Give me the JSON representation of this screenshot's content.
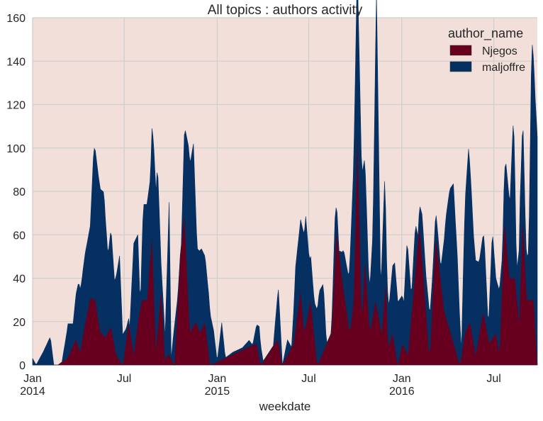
{
  "chart_data": {
    "type": "area",
    "stacked": true,
    "title": "All topics : authors activity",
    "xlabel": "weekdate",
    "ylabel": "",
    "ylim": [
      0,
      160
    ],
    "xlim": [
      "2014-01-01",
      "2016-09-25"
    ],
    "yticks": [
      0,
      20,
      40,
      60,
      80,
      100,
      120,
      140,
      160
    ],
    "xticks": [
      {
        "date": "2014-01-01",
        "label": "Jan",
        "sublabel": "2014"
      },
      {
        "date": "2014-07-01",
        "label": "Jul",
        "sublabel": ""
      },
      {
        "date": "2015-01-01",
        "label": "Jan",
        "sublabel": "2015"
      },
      {
        "date": "2015-07-01",
        "label": "Jul",
        "sublabel": ""
      },
      {
        "date": "2016-01-01",
        "label": "Jan",
        "sublabel": "2016"
      },
      {
        "date": "2016-07-01",
        "label": "Jul",
        "sublabel": ""
      }
    ],
    "grid": true,
    "legend": {
      "title": "author_name",
      "position": "top-right"
    },
    "colors": {
      "Njegos": "#67001f",
      "maljoffre": "#053061",
      "background": "#f3dfd9",
      "grid": "#cfcfcf"
    },
    "series": [
      {
        "name": "Njegos",
        "points": [
          [
            "2014-01-01",
            0
          ],
          [
            "2014-02-20",
            0
          ],
          [
            "2014-03-10",
            3
          ],
          [
            "2014-03-28",
            12
          ],
          [
            "2014-04-05",
            6
          ],
          [
            "2014-04-12",
            16
          ],
          [
            "2014-04-25",
            31
          ],
          [
            "2014-05-05",
            30
          ],
          [
            "2014-05-15",
            15
          ],
          [
            "2014-05-25",
            13
          ],
          [
            "2014-06-05",
            18
          ],
          [
            "2014-06-15",
            5
          ],
          [
            "2014-06-28",
            0
          ],
          [
            "2014-07-10",
            20
          ],
          [
            "2014-07-20",
            5
          ],
          [
            "2014-07-28",
            20
          ],
          [
            "2014-08-05",
            30
          ],
          [
            "2014-08-15",
            30
          ],
          [
            "2014-08-25",
            60
          ],
          [
            "2014-09-02",
            8
          ],
          [
            "2014-09-12",
            35
          ],
          [
            "2014-09-20",
            3
          ],
          [
            "2014-09-28",
            5
          ],
          [
            "2014-10-08",
            0
          ],
          [
            "2014-10-20",
            50
          ],
          [
            "2014-10-28",
            70
          ],
          [
            "2014-11-08",
            15
          ],
          [
            "2014-11-20",
            20
          ],
          [
            "2014-11-28",
            15
          ],
          [
            "2014-12-08",
            20
          ],
          [
            "2014-12-18",
            0
          ],
          [
            "2015-03-20",
            10
          ],
          [
            "2015-03-28",
            0
          ],
          [
            "2015-05-01",
            12
          ],
          [
            "2015-05-10",
            0
          ],
          [
            "2015-06-01",
            10
          ],
          [
            "2015-06-15",
            35
          ],
          [
            "2015-06-22",
            15
          ],
          [
            "2015-07-05",
            30
          ],
          [
            "2015-07-18",
            0
          ],
          [
            "2015-08-15",
            15
          ],
          [
            "2015-08-25",
            63
          ],
          [
            "2015-09-05",
            40
          ],
          [
            "2015-09-20",
            15
          ],
          [
            "2015-09-28",
            30
          ],
          [
            "2015-10-05",
            110
          ],
          [
            "2015-10-14",
            20
          ],
          [
            "2015-10-20",
            50
          ],
          [
            "2015-10-30",
            15
          ],
          [
            "2015-11-10",
            30
          ],
          [
            "2015-11-22",
            15
          ],
          [
            "2015-12-01",
            40
          ],
          [
            "2015-12-05",
            8
          ],
          [
            "2015-12-14",
            15
          ],
          [
            "2015-12-24",
            0
          ],
          [
            "2016-01-02",
            10
          ],
          [
            "2016-01-13",
            5
          ],
          [
            "2016-02-05",
            65
          ],
          [
            "2016-02-25",
            3
          ],
          [
            "2016-03-08",
            60
          ],
          [
            "2016-03-25",
            25
          ],
          [
            "2016-04-15",
            8
          ],
          [
            "2016-04-25",
            0
          ],
          [
            "2016-05-05",
            15
          ],
          [
            "2016-05-15",
            20
          ],
          [
            "2016-05-26",
            5
          ],
          [
            "2016-06-10",
            25
          ],
          [
            "2016-06-22",
            10
          ],
          [
            "2016-07-05",
            15
          ],
          [
            "2016-07-12",
            5
          ],
          [
            "2016-07-22",
            68
          ],
          [
            "2016-08-01",
            40
          ],
          [
            "2016-08-12",
            40
          ],
          [
            "2016-08-20",
            20
          ],
          [
            "2016-08-27",
            70
          ],
          [
            "2016-09-04",
            30
          ],
          [
            "2016-09-12",
            30
          ],
          [
            "2016-09-18",
            30
          ],
          [
            "2016-09-25",
            0
          ]
        ]
      },
      {
        "name": "maljoffre",
        "points": [
          [
            "2014-01-01",
            3
          ],
          [
            "2014-01-08",
            0
          ],
          [
            "2014-01-22",
            6
          ],
          [
            "2014-02-05",
            13
          ],
          [
            "2014-02-12",
            0
          ],
          [
            "2014-02-28",
            0
          ],
          [
            "2014-03-12",
            15
          ],
          [
            "2014-03-22",
            10
          ],
          [
            "2014-04-02",
            30
          ],
          [
            "2014-04-08",
            28
          ],
          [
            "2014-04-15",
            32
          ],
          [
            "2014-04-25",
            33
          ],
          [
            "2014-05-02",
            70
          ],
          [
            "2014-05-12",
            66
          ],
          [
            "2014-05-22",
            66
          ],
          [
            "2014-05-30",
            35
          ],
          [
            "2014-06-05",
            45
          ],
          [
            "2014-06-12",
            30
          ],
          [
            "2014-06-22",
            48
          ],
          [
            "2014-06-28",
            14
          ],
          [
            "2014-07-05",
            5
          ],
          [
            "2014-07-12",
            0
          ],
          [
            "2014-07-20",
            51
          ],
          [
            "2014-07-28",
            40
          ],
          [
            "2014-08-02",
            0
          ],
          [
            "2014-08-08",
            44
          ],
          [
            "2014-08-15",
            44
          ],
          [
            "2014-08-22",
            35
          ],
          [
            "2014-08-28",
            63
          ],
          [
            "2014-09-05",
            77
          ],
          [
            "2014-09-12",
            12
          ],
          [
            "2014-09-20",
            10
          ],
          [
            "2014-09-28",
            70
          ],
          [
            "2014-10-02",
            0
          ],
          [
            "2014-10-08",
            17
          ],
          [
            "2014-10-15",
            2
          ],
          [
            "2014-10-22",
            0
          ],
          [
            "2014-10-30",
            48
          ],
          [
            "2014-11-06",
            75
          ],
          [
            "2014-11-15",
            84
          ],
          [
            "2014-11-22",
            35
          ],
          [
            "2014-11-30",
            38
          ],
          [
            "2014-12-08",
            30
          ],
          [
            "2014-12-15",
            27
          ],
          [
            "2014-12-25",
            15
          ],
          [
            "2015-01-01",
            0
          ],
          [
            "2015-01-10",
            17
          ],
          [
            "2015-01-17",
            0
          ],
          [
            "2015-02-01",
            1
          ],
          [
            "2015-02-20",
            1
          ],
          [
            "2015-03-05",
            3
          ],
          [
            "2015-03-12",
            0
          ],
          [
            "2015-03-25",
            14
          ],
          [
            "2015-04-02",
            0
          ],
          [
            "2015-04-22",
            0
          ],
          [
            "2015-05-02",
            24
          ],
          [
            "2015-05-10",
            0
          ],
          [
            "2015-05-20",
            7
          ],
          [
            "2015-05-28",
            0
          ],
          [
            "2015-06-05",
            28
          ],
          [
            "2015-06-15",
            32
          ],
          [
            "2015-06-25",
            50
          ],
          [
            "2015-07-02",
            22
          ],
          [
            "2015-07-12",
            15
          ],
          [
            "2015-07-22",
            32
          ],
          [
            "2015-07-30",
            31
          ],
          [
            "2015-08-05",
            0
          ],
          [
            "2015-08-15",
            0
          ],
          [
            "2015-08-22",
            19
          ],
          [
            "2015-08-30",
            0
          ],
          [
            "2015-09-08",
            18
          ],
          [
            "2015-09-18",
            22
          ],
          [
            "2015-09-28",
            63
          ],
          [
            "2015-10-05",
            75
          ],
          [
            "2015-10-15",
            64
          ],
          [
            "2015-10-28",
            16
          ],
          [
            "2015-11-05",
            38
          ],
          [
            "2015-11-12",
            144
          ],
          [
            "2015-11-20",
            22
          ],
          [
            "2015-11-28",
            53
          ],
          [
            "2015-12-02",
            17
          ],
          [
            "2015-12-08",
            20
          ],
          [
            "2015-12-18",
            38
          ],
          [
            "2015-12-25",
            28
          ],
          [
            "2016-01-05",
            20
          ],
          [
            "2016-01-12",
            54
          ],
          [
            "2016-01-20",
            8
          ],
          [
            "2016-01-28",
            21
          ],
          [
            "2016-02-02",
            2
          ],
          [
            "2016-02-10",
            20
          ],
          [
            "2016-02-18",
            16
          ],
          [
            "2016-02-24",
            20
          ],
          [
            "2016-03-02",
            10
          ],
          [
            "2016-03-10",
            11
          ],
          [
            "2016-03-18",
            5
          ],
          [
            "2016-03-28",
            45
          ],
          [
            "2016-04-05",
            65
          ],
          [
            "2016-04-12",
            73
          ],
          [
            "2016-04-20",
            45
          ],
          [
            "2016-04-28",
            3
          ],
          [
            "2016-05-05",
            60
          ],
          [
            "2016-05-12",
            81
          ],
          [
            "2016-05-22",
            49
          ],
          [
            "2016-06-02",
            33
          ],
          [
            "2016-06-12",
            36
          ],
          [
            "2016-06-20",
            5
          ],
          [
            "2016-06-28",
            50
          ],
          [
            "2016-07-05",
            25
          ],
          [
            "2016-07-12",
            29
          ],
          [
            "2016-07-18",
            8
          ],
          [
            "2016-07-25",
            33
          ],
          [
            "2016-08-02",
            36
          ],
          [
            "2016-08-09",
            76
          ],
          [
            "2016-08-15",
            10
          ],
          [
            "2016-08-22",
            42
          ],
          [
            "2016-08-28",
            43
          ],
          [
            "2016-09-02",
            18
          ],
          [
            "2016-09-08",
            22
          ],
          [
            "2016-09-14",
            120
          ],
          [
            "2016-09-20",
            105
          ]
        ]
      }
    ]
  }
}
